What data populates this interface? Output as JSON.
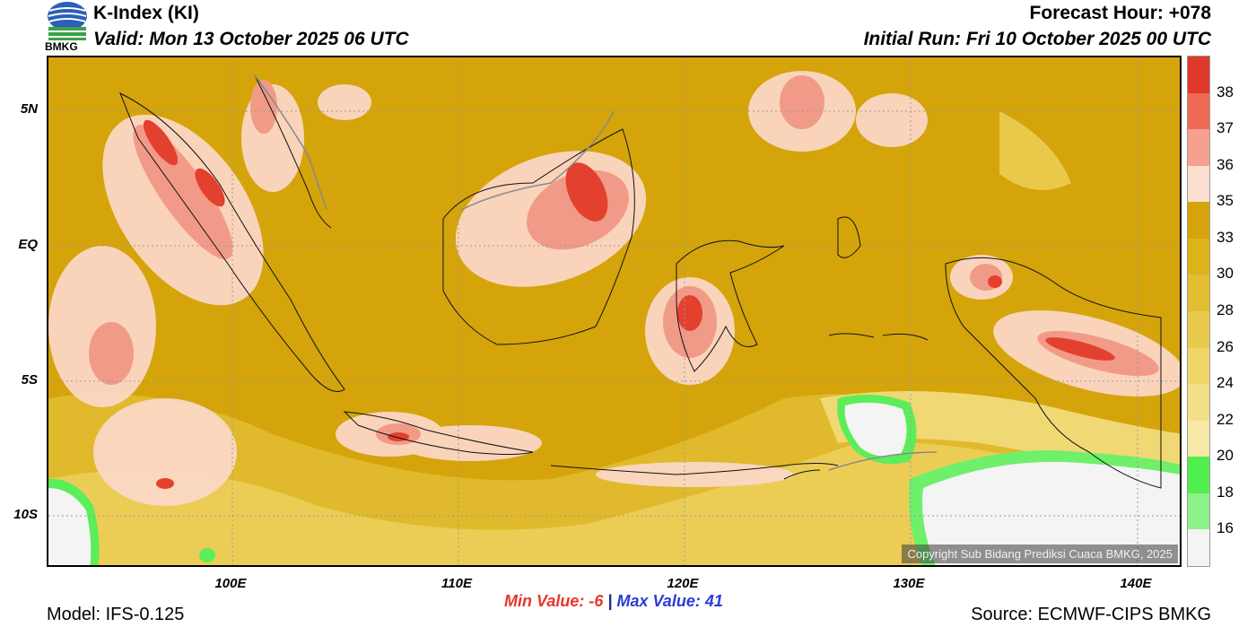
{
  "header": {
    "title": "K-Index (KI)",
    "valid": "Valid: Mon 13 October 2025 06 UTC",
    "forecast_hour": "Forecast Hour: +078",
    "initial_run": "Initial Run: Fri 10 October 2025 00 UTC",
    "logo_text": "BMKG"
  },
  "map": {
    "copyright": "Copyright Sub Bidang Prediksi Cuaca BMKG, 2025",
    "lat_labels": [
      "5N",
      "EQ",
      "5S",
      "10S"
    ],
    "lon_labels": [
      "100E",
      "110E",
      "120E",
      "130E",
      "140E"
    ]
  },
  "stats": {
    "min_label": "Min Value:",
    "min_value": "-6",
    "separator": "|",
    "max_label": "Max Value:",
    "max_value": "41"
  },
  "footer": {
    "model": "Model: IFS-0.125",
    "source": "Source: ECMWF-CIPS BMKG"
  },
  "colorbar": {
    "labels": [
      "38",
      "37",
      "36",
      "35",
      "33",
      "30",
      "28",
      "26",
      "24",
      "22",
      "20",
      "18",
      "16"
    ],
    "colors": [
      "#e0382a",
      "#ef6a55",
      "#f6a090",
      "#fde0cf",
      "#d4a40a",
      "#ddb31a",
      "#e3be30",
      "#e9ca4c",
      "#efd56a",
      "#f5e08a",
      "#f7eaa8",
      "#4ff04d",
      "#8ef28a",
      "#f4f4f4"
    ]
  }
}
